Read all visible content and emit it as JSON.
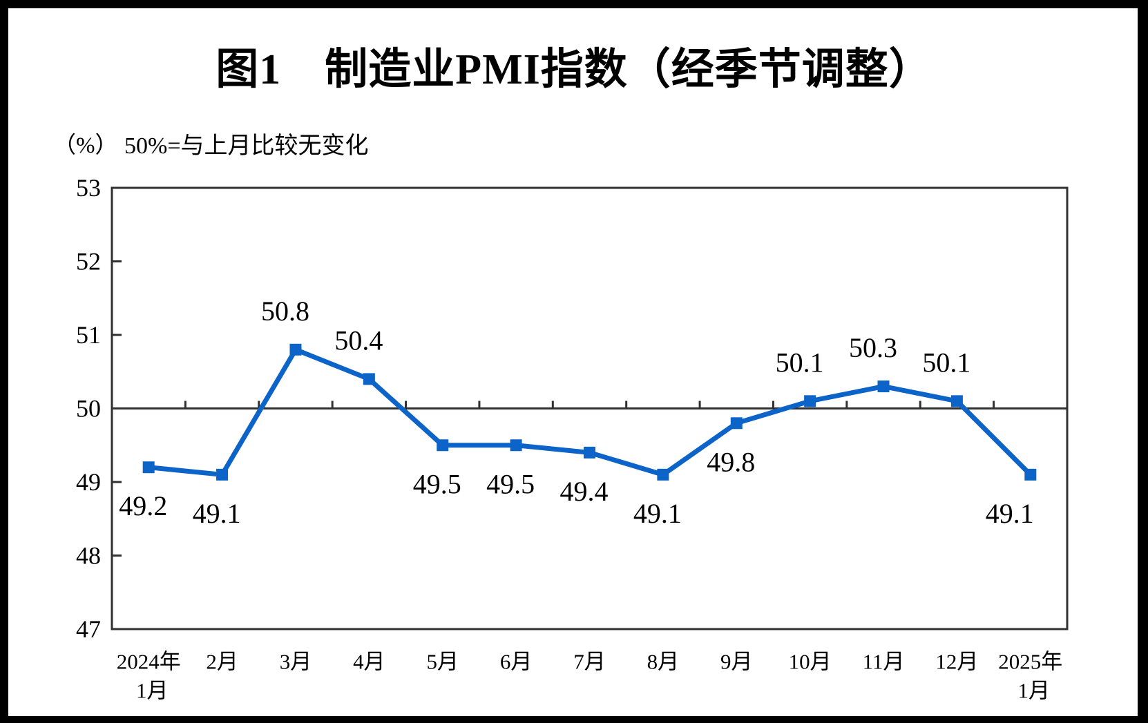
{
  "chart_data": {
    "type": "line",
    "title": "图1　制造业PMI指数（经季节调整）",
    "y_axis_unit": "（%）",
    "annotation": "50%=与上月比较无变化",
    "categories": [
      [
        "2024年",
        "1月"
      ],
      [
        "2月"
      ],
      [
        "3月"
      ],
      [
        "4月"
      ],
      [
        "5月"
      ],
      [
        "6月"
      ],
      [
        "7月"
      ],
      [
        "8月"
      ],
      [
        "9月"
      ],
      [
        "10月"
      ],
      [
        "11月"
      ],
      [
        "12月"
      ],
      [
        "2025年",
        "1月"
      ]
    ],
    "values": [
      49.2,
      49.1,
      50.8,
      50.4,
      49.5,
      49.5,
      49.4,
      49.1,
      49.8,
      50.1,
      50.3,
      50.1,
      49.1
    ],
    "ylim": [
      47,
      53
    ],
    "y_ticks": [
      53,
      52,
      51,
      50,
      49,
      48,
      47
    ],
    "reference_line_y": 50,
    "grid": "off",
    "legend": "none",
    "marker": "square",
    "data_labels_visible": true,
    "colors": {
      "line": "#0D64C8",
      "axis": "#303030",
      "text": "#000000",
      "background": "#FFFFFF",
      "frame": "#000000"
    }
  }
}
